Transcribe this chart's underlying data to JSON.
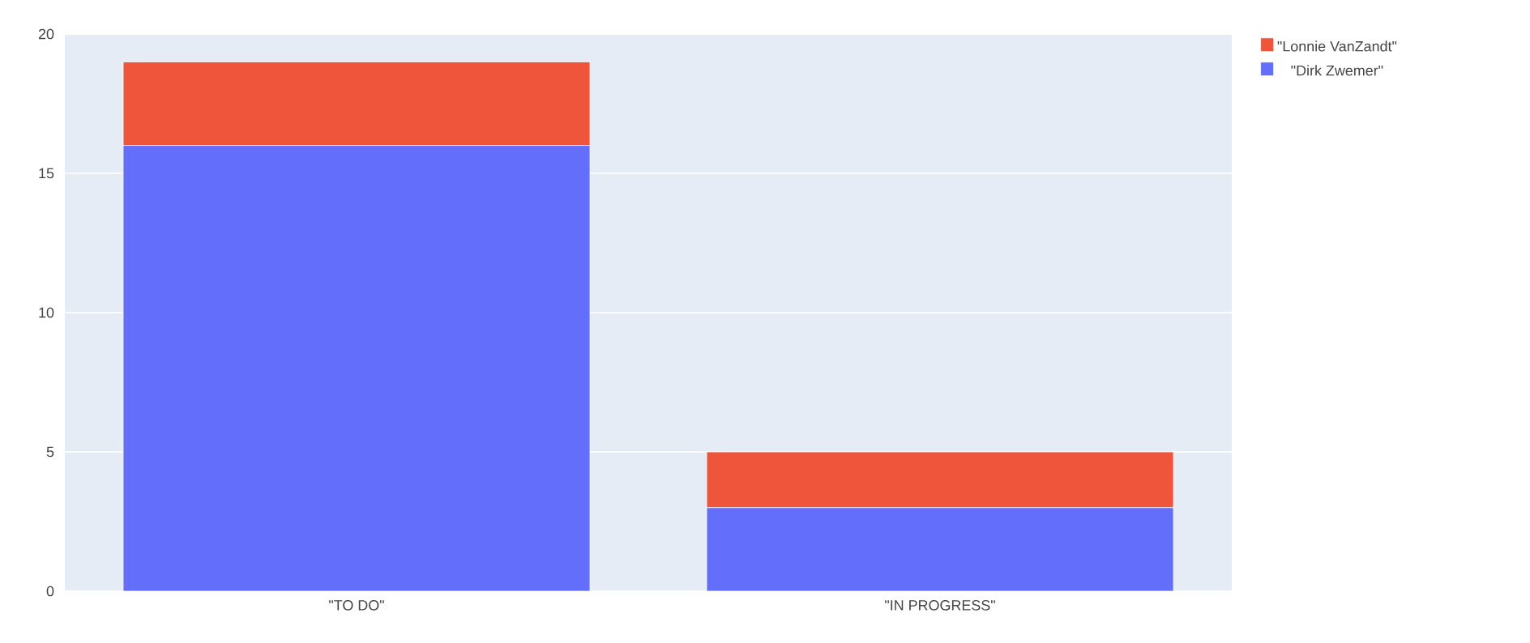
{
  "chart_data": {
    "type": "bar",
    "stacked": true,
    "categories": [
      "\"TO DO\"",
      "\"IN PROGRESS\""
    ],
    "series": [
      {
        "name": "\"Dirk Zwemer\"",
        "color": "#636efa",
        "values": [
          16,
          3
        ]
      },
      {
        "name": "\"Lonnie VanZandt\"",
        "color": "#ef553b",
        "values": [
          3,
          2
        ]
      }
    ],
    "ylim": [
      0,
      20
    ],
    "yticks": [
      0,
      5,
      10,
      15,
      20
    ],
    "grid": "y",
    "legend": "top right"
  }
}
